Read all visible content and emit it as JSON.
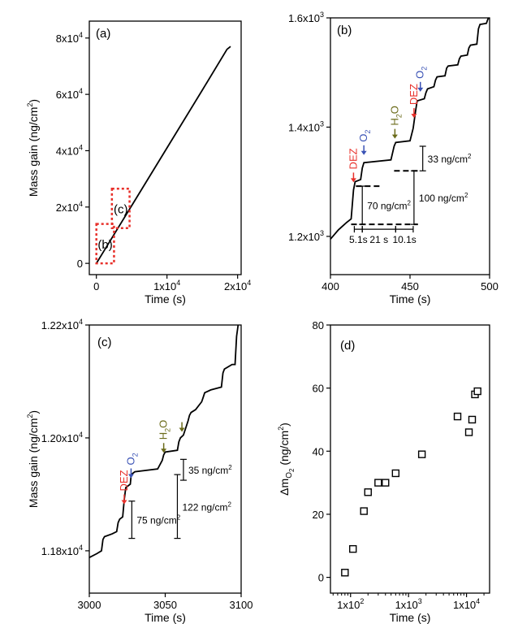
{
  "chart_data": [
    {
      "id": "a",
      "type": "line",
      "panel_label": "(a)",
      "xlabel": "Time (s)",
      "ylabel": "Mass gain (ng/cm2)",
      "xlim": [
        -1000,
        20500
      ],
      "ylim": [
        -4000,
        86000
      ],
      "xticks": [
        {
          "v": 0,
          "t": "0"
        },
        {
          "v": 10000,
          "t": "1x10"
        },
        {
          "v": 20000,
          "t": "2x10"
        }
      ],
      "xtick_exp": "4",
      "yticks": [
        {
          "v": 0,
          "t": "0"
        },
        {
          "v": 20000,
          "t": "2x10"
        },
        {
          "v": 40000,
          "t": "4x10"
        },
        {
          "v": 60000,
          "t": "6x10"
        },
        {
          "v": 80000,
          "t": "8x10"
        }
      ],
      "ytick_exp": "4",
      "series": [
        {
          "x": [
            0,
            5000,
            10000,
            15000,
            18500,
            19000
          ],
          "y": [
            0,
            20500,
            41000,
            61500,
            76000,
            77000
          ]
        }
      ],
      "boxes": [
        {
          "label": "(b)",
          "x": [
            0,
            2500
          ],
          "y": [
            0,
            14000
          ]
        },
        {
          "label": "(c)",
          "x": [
            2200,
            4700
          ],
          "y": [
            12500,
            26500
          ]
        }
      ]
    },
    {
      "id": "b",
      "type": "line",
      "panel_label": "(b)",
      "xlabel": "Time (s)",
      "ylabel": "",
      "xlim": [
        400,
        500
      ],
      "ylim": [
        1130,
        1600
      ],
      "xticks": [
        {
          "v": 400,
          "t": "400"
        },
        {
          "v": 450,
          "t": "450"
        },
        {
          "v": 500,
          "t": "500"
        }
      ],
      "yticks": [
        {
          "v": 1200,
          "t": "1.2x10"
        },
        {
          "v": 1400,
          "t": "1.4x10"
        },
        {
          "v": 1600,
          "t": "1.6x10"
        }
      ],
      "ytick_exp": "3",
      "series": [
        {
          "x": [
            400,
            405,
            410,
            413,
            414.5,
            415.5,
            419,
            420,
            421,
            438,
            440,
            441,
            450,
            452,
            453.5,
            454.5,
            459,
            460,
            461,
            465,
            466,
            467,
            472,
            473,
            474,
            480,
            481,
            482,
            486,
            487,
            488,
            492,
            493,
            494,
            498,
            499,
            500
          ],
          "y": [
            1195,
            1212,
            1225,
            1232,
            1285,
            1300,
            1304,
            1325,
            1335,
            1340,
            1365,
            1372,
            1375,
            1398,
            1430,
            1448,
            1452,
            1463,
            1470,
            1474,
            1486,
            1492,
            1494,
            1508,
            1512,
            1514,
            1525,
            1530,
            1532,
            1545,
            1550,
            1552,
            1580,
            1588,
            1590,
            1598,
            1600
          ]
        }
      ],
      "annotations": {
        "pulses": [
          {
            "x": 414.5,
            "y": 1290,
            "label": "DEZ",
            "kind": "DEZ"
          },
          {
            "x": 421,
            "y": 1340,
            "label": "O",
            "kind": "O2"
          },
          {
            "x": 440.5,
            "y": 1370,
            "label": "H",
            "kind": "H2O"
          },
          {
            "x": 452.5,
            "y": 1408,
            "label": "DEZ",
            "kind": "DEZ"
          },
          {
            "x": 456.5,
            "y": 1456,
            "label": "O",
            "kind": "O2"
          }
        ],
        "steps": [
          {
            "text": "33 ng/cm",
            "x": 458,
            "y1": 1320,
            "y2": 1365
          },
          {
            "text": "100 ng/cm",
            "x": 452.5,
            "y1": 1222,
            "y2": 1320
          },
          {
            "text": "70 ng/cm",
            "x": 420,
            "y1": 1222,
            "y2": 1292
          }
        ],
        "intervals": [
          {
            "text": "5.1s",
            "x1": 415,
            "x2": 420
          },
          {
            "text": "21 s",
            "x1": 420,
            "x2": 441
          },
          {
            "text": "10.1s",
            "x1": 441,
            "x2": 452
          }
        ]
      }
    },
    {
      "id": "c",
      "type": "line",
      "panel_label": "(c)",
      "xlabel": "Time (s)",
      "ylabel": "Mass gain (ng/cm2)",
      "xlim": [
        3000,
        3100
      ],
      "ylim": [
        11725,
        12200
      ],
      "xticks": [
        {
          "v": 3000,
          "t": "3000"
        },
        {
          "v": 3050,
          "t": "3050"
        },
        {
          "v": 3100,
          "t": "3100"
        }
      ],
      "yticks": [
        {
          "v": 11800,
          "t": "1.18x10"
        },
        {
          "v": 12000,
          "t": "1.20x10"
        },
        {
          "v": 12200,
          "t": "1.22x10"
        }
      ],
      "ytick_exp": "4",
      "series": [
        {
          "x": [
            3000,
            3005,
            3008,
            3009,
            3010,
            3015,
            3018,
            3019,
            3020,
            3022,
            3023,
            3024,
            3027,
            3027.5,
            3028,
            3030,
            3045,
            3048,
            3049,
            3050,
            3058,
            3059,
            3060,
            3062,
            3065,
            3066,
            3067,
            3070,
            3074,
            3075,
            3076,
            3080,
            3087,
            3088,
            3089,
            3094,
            3096,
            3097,
            3098
          ],
          "y": [
            11788,
            11795,
            11800,
            11820,
            11825,
            11830,
            11834,
            11850,
            11856,
            11860,
            11890,
            11912,
            11918,
            11932,
            11936,
            11940,
            11945,
            11960,
            11970,
            11975,
            11978,
            11993,
            12000,
            12005,
            12030,
            12040,
            12045,
            12050,
            12064,
            12072,
            12080,
            12085,
            12090,
            12115,
            12122,
            12130,
            12130,
            12180,
            12200
          ]
        }
      ],
      "annotations": {
        "pulses": [
          {
            "x": 3023,
            "y": 11874,
            "label": "DEZ",
            "kind": "DEZ"
          },
          {
            "x": 3027.5,
            "y": 11920,
            "label": "O",
            "kind": "O2"
          },
          {
            "x": 3049,
            "y": 11965,
            "label": "H",
            "kind": "H2O"
          },
          {
            "x": 3061,
            "y": 12002,
            "label": "",
            "kind": "H2O"
          }
        ],
        "steps": [
          {
            "text": "35 ng/cm",
            "x": 3062,
            "y1": 11925,
            "y2": 11962
          },
          {
            "text": "122 ng/cm",
            "x": 3058,
            "y1": 11822,
            "y2": 11935
          },
          {
            "text": "75 ng/cm",
            "x": 3028,
            "y1": 11822,
            "y2": 11888
          }
        ]
      }
    },
    {
      "id": "d",
      "type": "scatter",
      "panel_label": "(d)",
      "xlabel": "Time (s)",
      "ylabel_prefix": "Δm",
      "ylabel_sub": "O",
      "ylabel_sub2": "2",
      "ylabel_suffix": " (ng/cm",
      "ylabel_end": ")",
      "x_scale": "log",
      "xlim": [
        45,
        25000
      ],
      "ylim": [
        -5,
        80
      ],
      "xticks": [
        {
          "v": 100,
          "t": "1x10"
        },
        {
          "v": 1000,
          "t": "1x10"
        },
        {
          "v": 10000,
          "t": "1x10"
        }
      ],
      "xtick_exps": [
        "2",
        "3",
        "4"
      ],
      "yticks": [
        {
          "v": 0,
          "t": "0"
        },
        {
          "v": 20,
          "t": "20"
        },
        {
          "v": 40,
          "t": "40"
        },
        {
          "v": 60,
          "t": "60"
        },
        {
          "v": 80,
          "t": "80"
        }
      ],
      "points": [
        {
          "x": 80,
          "y": 1.5
        },
        {
          "x": 110,
          "y": 9
        },
        {
          "x": 170,
          "y": 21
        },
        {
          "x": 200,
          "y": 27
        },
        {
          "x": 300,
          "y": 30
        },
        {
          "x": 400,
          "y": 30
        },
        {
          "x": 600,
          "y": 33
        },
        {
          "x": 1700,
          "y": 39
        },
        {
          "x": 7000,
          "y": 51
        },
        {
          "x": 11000,
          "y": 46
        },
        {
          "x": 12500,
          "y": 50
        },
        {
          "x": 14000,
          "y": 58
        },
        {
          "x": 15500,
          "y": 59
        }
      ]
    }
  ],
  "text": {
    "o_main": "O",
    "o_sub": "2",
    "h_main": "H",
    "h_sub": "2",
    "h_end": "O",
    "sup2": "2"
  }
}
